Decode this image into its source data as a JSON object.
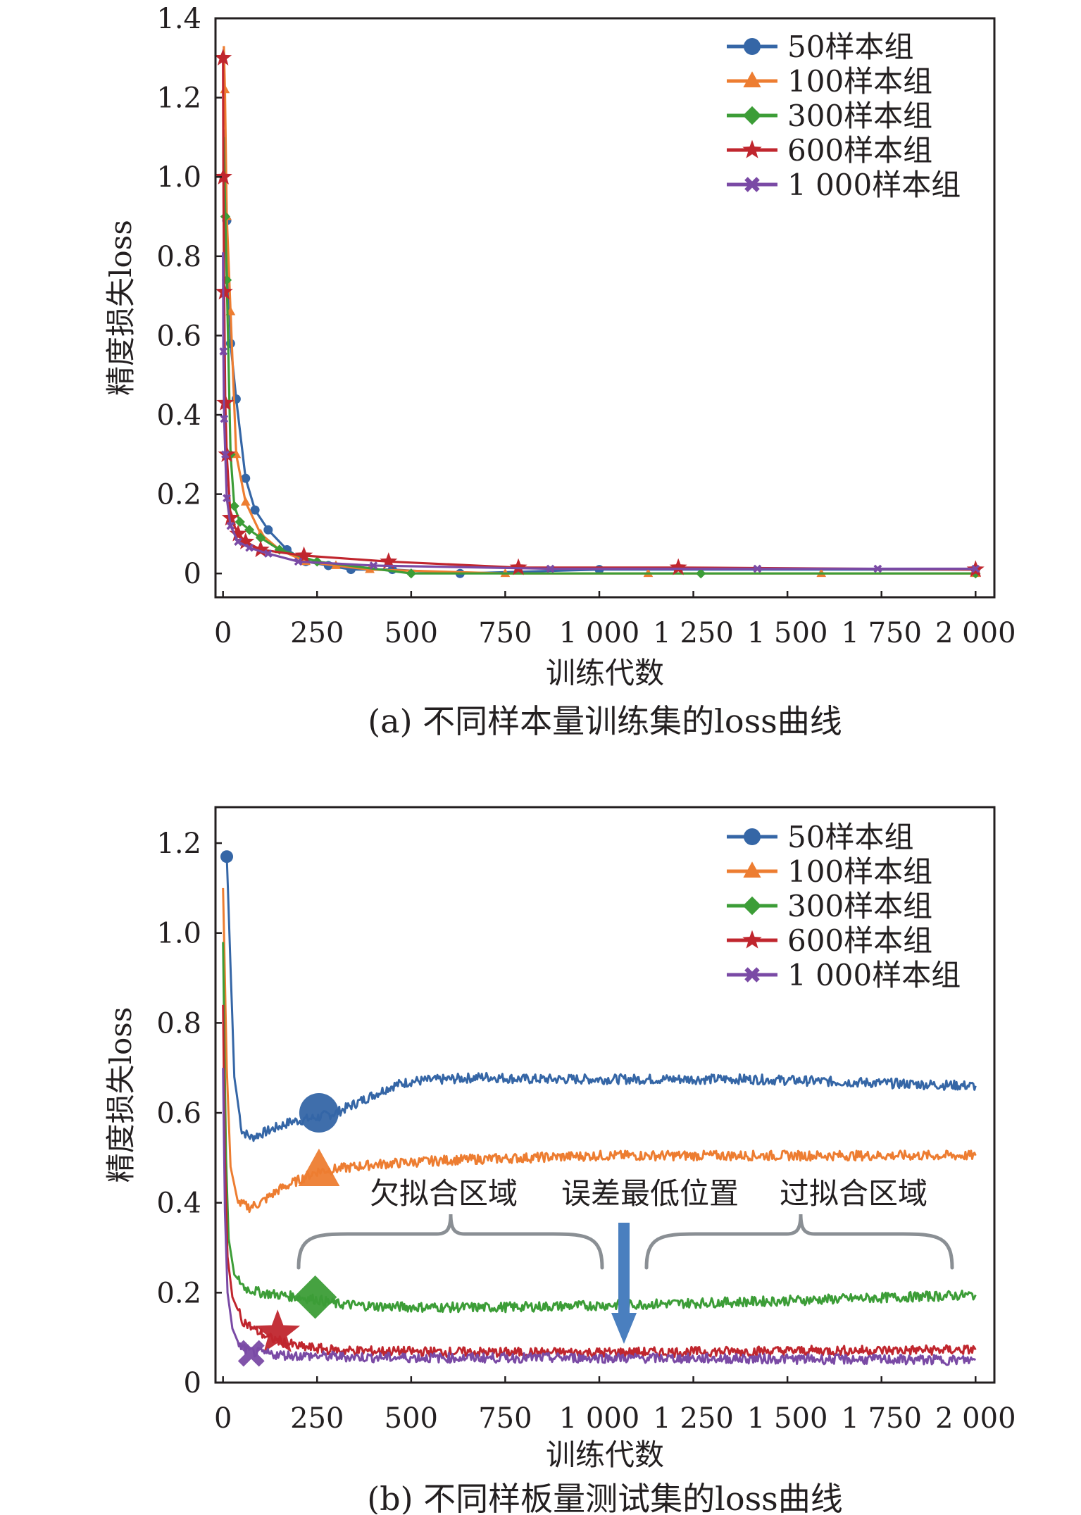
{
  "colors": {
    "s50": "#3566a6",
    "s100": "#ed7d31",
    "s300": "#3c9d37",
    "s600": "#c0262e",
    "s1000": "#7a4aa5",
    "axis": "#231f20",
    "bracket": "#8a8f94",
    "arrow": "#4a7fbf"
  },
  "icons": {
    "s50": "circle-marker-icon",
    "s100": "triangle-marker-icon",
    "s300": "diamond-marker-icon",
    "s600": "star-marker-icon",
    "s1000": "x-marker-icon",
    "arrow": "down-arrow-icon",
    "bracket": "curly-bracket-icon"
  },
  "chart_data": [
    {
      "type": "line",
      "caption": "(a) 不同样本量训练集的loss曲线",
      "xlabel": "训练代数",
      "ylabel": "精度损失loss",
      "xlim": [
        -20,
        2050
      ],
      "ylim": [
        -0.06,
        1.4
      ],
      "xticks": [
        0,
        250,
        500,
        750,
        1000,
        1250,
        1500,
        1750,
        2000
      ],
      "xtick_labels": [
        "0",
        "250",
        "500",
        "750",
        "1 000",
        "1 250",
        "1 500",
        "1 750",
        "2 000"
      ],
      "yticks": [
        0,
        0.2,
        0.4,
        0.6,
        0.8,
        1.0,
        1.2,
        1.4
      ],
      "ytick_labels": [
        "0",
        "0.2",
        "0.4",
        "0.6",
        "0.8",
        "1.0",
        "1.2",
        "1.4"
      ],
      "legend_position": "top-right",
      "series": [
        {
          "name": "50样本组",
          "key": "s50",
          "marker": "circle",
          "x": [
            5,
            10,
            20,
            35,
            60,
            85,
            120,
            170,
            220,
            280,
            340,
            450,
            630,
            1000,
            2000
          ],
          "y": [
            1.12,
            0.89,
            0.58,
            0.44,
            0.24,
            0.16,
            0.11,
            0.06,
            0.03,
            0.02,
            0.01,
            0.01,
            0.0,
            0.01,
            0.01
          ]
        },
        {
          "name": "100样本组",
          "key": "s100",
          "marker": "triangle",
          "x": [
            2,
            5,
            10,
            20,
            35,
            60,
            100,
            150,
            220,
            300,
            390,
            750,
            1130,
            1590,
            2000
          ],
          "y": [
            1.33,
            1.22,
            0.9,
            0.66,
            0.3,
            0.18,
            0.1,
            0.06,
            0.03,
            0.02,
            0.01,
            0.0,
            0.0,
            0.0,
            0.0
          ]
        },
        {
          "name": "300样本组",
          "key": "s300",
          "marker": "diamond",
          "x": [
            2,
            6,
            10,
            20,
            30,
            45,
            70,
            100,
            150,
            250,
            500,
            1270,
            2000
          ],
          "y": [
            1.1,
            0.9,
            0.74,
            0.3,
            0.17,
            0.13,
            0.11,
            0.09,
            0.06,
            0.03,
            0.0,
            0.0,
            0.0
          ]
        },
        {
          "name": "600样本组",
          "key": "s600",
          "marker": "star",
          "x": [
            0,
            1,
            3,
            6,
            10,
            20,
            40,
            60,
            100,
            215,
            440,
            785,
            1210,
            2000
          ],
          "y": [
            1.3,
            1.0,
            0.71,
            0.43,
            0.3,
            0.14,
            0.1,
            0.08,
            0.06,
            0.045,
            0.03,
            0.015,
            0.015,
            0.01
          ]
        },
        {
          "name": "1 000样本组",
          "key": "s1000",
          "marker": "x",
          "x": [
            0,
            1,
            3,
            6,
            10,
            20,
            40,
            70,
            120,
            200,
            400,
            870,
            1420,
            1740,
            2000
          ],
          "y": [
            0.81,
            0.56,
            0.39,
            0.3,
            0.19,
            0.12,
            0.08,
            0.065,
            0.05,
            0.03,
            0.02,
            0.012,
            0.012,
            0.012,
            0.012
          ]
        }
      ]
    },
    {
      "type": "line",
      "caption": "(b) 不同样板量测试集的loss曲线",
      "xlabel": "训练代数",
      "ylabel": "精度损失loss",
      "xlim": [
        -20,
        2050
      ],
      "ylim": [
        0,
        1.28
      ],
      "xticks": [
        0,
        250,
        500,
        750,
        1000,
        1250,
        1500,
        1750,
        2000
      ],
      "xtick_labels": [
        "0",
        "250",
        "500",
        "750",
        "1 000",
        "1 250",
        "1 500",
        "1 750",
        "2 000"
      ],
      "yticks": [
        0,
        0.2,
        0.4,
        0.6,
        0.8,
        1.0,
        1.2
      ],
      "ytick_labels": [
        "0",
        "0.2",
        "0.4",
        "0.6",
        "0.8",
        "1.0",
        "1.2"
      ],
      "legend_position": "top-right",
      "annotations": [
        "欠拟合区域",
        "误差最低位置",
        "过拟合区域"
      ],
      "series": [
        {
          "name": "50样本组",
          "key": "s50",
          "marker": "circle",
          "marker_at": [
            255,
            0.6
          ],
          "x": [
            10,
            30,
            50,
            75,
            120,
            180,
            250,
            300,
            350,
            400,
            450,
            500,
            600,
            700,
            800,
            1000,
            1200,
            1400,
            1600,
            1800,
            2000
          ],
          "y": [
            1.17,
            0.68,
            0.56,
            0.545,
            0.56,
            0.58,
            0.59,
            0.6,
            0.62,
            0.64,
            0.66,
            0.67,
            0.675,
            0.68,
            0.675,
            0.675,
            0.675,
            0.675,
            0.67,
            0.665,
            0.66
          ]
        },
        {
          "name": "100样本组",
          "key": "s100",
          "marker": "triangle",
          "marker_at": [
            255,
            0.47
          ],
          "x": [
            0,
            10,
            20,
            40,
            70,
            100,
            150,
            200,
            250,
            300,
            400,
            500,
            600,
            800,
            1000,
            1200,
            1400,
            1600,
            1800,
            2000
          ],
          "y": [
            1.1,
            0.7,
            0.48,
            0.4,
            0.39,
            0.4,
            0.43,
            0.45,
            0.47,
            0.475,
            0.485,
            0.49,
            0.495,
            0.5,
            0.505,
            0.505,
            0.505,
            0.505,
            0.505,
            0.505
          ]
        },
        {
          "name": "300样本组",
          "key": "s300",
          "marker": "diamond",
          "marker_at": [
            245,
            0.19
          ],
          "x": [
            0,
            8,
            15,
            30,
            60,
            100,
            150,
            200,
            250,
            300,
            400,
            500,
            700,
            900,
            1000,
            1200,
            1400,
            1600,
            1800,
            2000
          ],
          "y": [
            0.98,
            0.5,
            0.32,
            0.24,
            0.21,
            0.2,
            0.195,
            0.19,
            0.185,
            0.175,
            0.17,
            0.168,
            0.167,
            0.17,
            0.172,
            0.176,
            0.18,
            0.185,
            0.19,
            0.195
          ]
        },
        {
          "name": "600样本组",
          "key": "s600",
          "marker": "star",
          "marker_at": [
            145,
            0.11
          ],
          "x": [
            0,
            5,
            12,
            25,
            50,
            80,
            120,
            160,
            200,
            300,
            400,
            600,
            800,
            1000,
            1200,
            1400,
            1600,
            1800,
            2000
          ],
          "y": [
            0.84,
            0.5,
            0.28,
            0.19,
            0.14,
            0.12,
            0.1,
            0.09,
            0.08,
            0.072,
            0.07,
            0.068,
            0.067,
            0.067,
            0.068,
            0.07,
            0.071,
            0.072,
            0.073
          ]
        },
        {
          "name": "1 000样本组",
          "key": "s1000",
          "marker": "x",
          "marker_at": [
            75,
            0.065
          ],
          "x": [
            0,
            5,
            12,
            25,
            45,
            75,
            110,
            150,
            200,
            300,
            400,
            600,
            800,
            1000,
            1200,
            1400,
            1600,
            1800,
            2000
          ],
          "y": [
            0.7,
            0.38,
            0.2,
            0.12,
            0.08,
            0.068,
            0.065,
            0.062,
            0.06,
            0.058,
            0.056,
            0.055,
            0.055,
            0.055,
            0.054,
            0.053,
            0.052,
            0.051,
            0.05
          ]
        }
      ]
    }
  ]
}
